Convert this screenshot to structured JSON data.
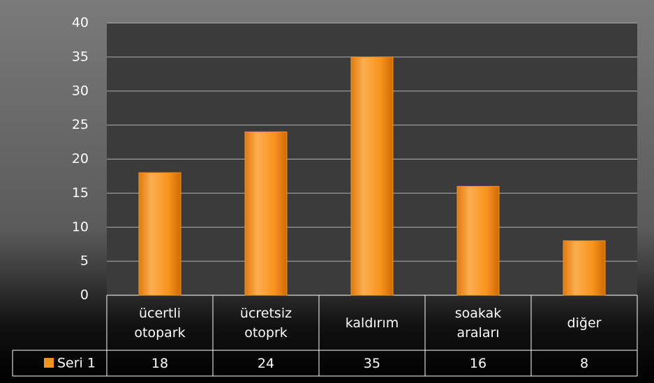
{
  "chart_data": {
    "type": "bar",
    "categories": [
      "ücertli otopark",
      "ücretsiz otoprk",
      "kaldırım",
      "soakak araları",
      "diğer"
    ],
    "series": [
      {
        "name": "Seri 1",
        "color": "#f7941d",
        "values": [
          18,
          24,
          35,
          16,
          8
        ]
      }
    ],
    "ylim": [
      0,
      40
    ],
    "yticks": [
      0,
      5,
      10,
      15,
      20,
      25,
      30,
      35,
      40
    ],
    "grid": true
  }
}
